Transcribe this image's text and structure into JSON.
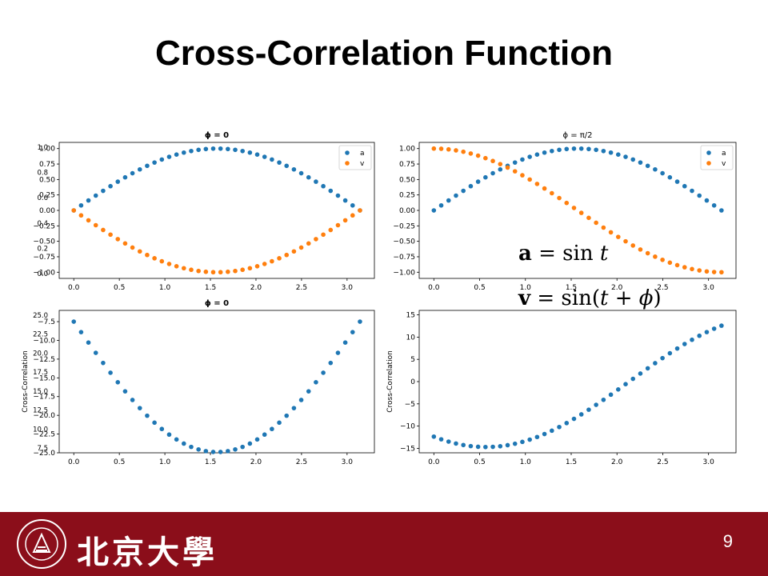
{
  "slide": {
    "title": "Cross-Correlation Function",
    "page_number": "9",
    "equation_a": {
      "lhs": "a",
      "op": " = sin ",
      "var": "t"
    },
    "equation_v": {
      "lhs": "v",
      "op": " = sin(",
      "var1": "t",
      "mid": " + ",
      "var2": "ϕ",
      "close": ")"
    },
    "logo": {
      "text": "北京大學",
      "seal_text": "PEKING UNIVERSITY",
      "seal_year": "1898"
    }
  },
  "colors": {
    "series_a": "#1f77b4",
    "series_v": "#ff7f0e",
    "footer": "#8b0e1a"
  },
  "chart_data": [
    {
      "type": "scatter",
      "title": "ϕ = 0",
      "title_overlap": "ϕ = π",
      "x_function": "linspace(0, π, 40)",
      "series": [
        {
          "name": "a",
          "color": "#1f77b4",
          "function": "sin(x)"
        },
        {
          "name": "v",
          "color": "#ff7f0e",
          "function": "-sin(x)"
        }
      ],
      "xlim": [
        -0.16,
        3.3
      ],
      "ylim": [
        -1.1,
        1.1
      ],
      "xticks": [
        "0.0",
        "0.5",
        "1.0",
        "1.5",
        "2.0",
        "2.5",
        "3.0"
      ],
      "yticks": [
        "1.00",
        "0.75",
        "0.50",
        "0.25",
        "0.00",
        "−0.25",
        "−0.50",
        "−0.75",
        "−1.00"
      ],
      "yticks_overlap": [
        "1.0",
        "0.8",
        "0.6",
        "0.4",
        "0.2",
        "0.0"
      ],
      "legend": "top-right"
    },
    {
      "type": "scatter",
      "title": "ϕ = π/2",
      "x_function": "linspace(0, π, 40)",
      "series": [
        {
          "name": "a",
          "color": "#1f77b4",
          "function": "sin(x)"
        },
        {
          "name": "v",
          "color": "#ff7f0e",
          "function": "cos(x)"
        }
      ],
      "xlim": [
        -0.16,
        3.3
      ],
      "ylim": [
        -1.1,
        1.1
      ],
      "xticks": [
        "0.0",
        "0.5",
        "1.0",
        "1.5",
        "2.0",
        "2.5",
        "3.0"
      ],
      "yticks": [
        "1.00",
        "0.75",
        "0.50",
        "0.25",
        "0.00",
        "−0.25",
        "−0.50",
        "−0.75",
        "−1.00"
      ],
      "legend": "top-right",
      "xlabel_partial": "ϕ = π/2"
    },
    {
      "type": "scatter",
      "title": "ϕ = 0",
      "title_overlap": "ϕ = π",
      "ylabel": "Cross-Correlation",
      "x_function": "linspace(0, π, 40)",
      "series": [
        {
          "name": "",
          "color": "#1f77b4",
          "function": "-8.4 * sin(x)"
        }
      ],
      "xlim": [
        -0.16,
        3.3
      ],
      "ylim": [
        -25,
        -6
      ],
      "xticks": [
        "0.0",
        "0.5",
        "1.0",
        "1.5",
        "2.0",
        "2.5",
        "3.0"
      ],
      "yticks": [
        "−7.5",
        "−10.0",
        "−12.5",
        "−15.0",
        "−17.5",
        "−20.0",
        "−22.5",
        "−25.0"
      ],
      "yticks_overlap": [
        "25.0",
        "22.5",
        "20.0",
        "17.5",
        "15.0",
        "12.5",
        "10.0",
        "7.5"
      ]
    },
    {
      "type": "scatter",
      "ylabel": "Cross-Correlation",
      "x_function": "linspace(0, π, 40)",
      "series": [
        {
          "name": "",
          "color": "#1f77b4",
          "function": "14.8 * sin(x - 2.14)"
        }
      ],
      "xlim": [
        -0.16,
        3.3
      ],
      "ylim": [
        -16,
        16
      ],
      "xticks": [
        "0.0",
        "0.5",
        "1.0",
        "1.5",
        "2.0",
        "2.5",
        "3.0"
      ],
      "yticks": [
        "15",
        "10",
        "5",
        "0",
        "−5",
        "−10",
        "−15"
      ]
    }
  ]
}
